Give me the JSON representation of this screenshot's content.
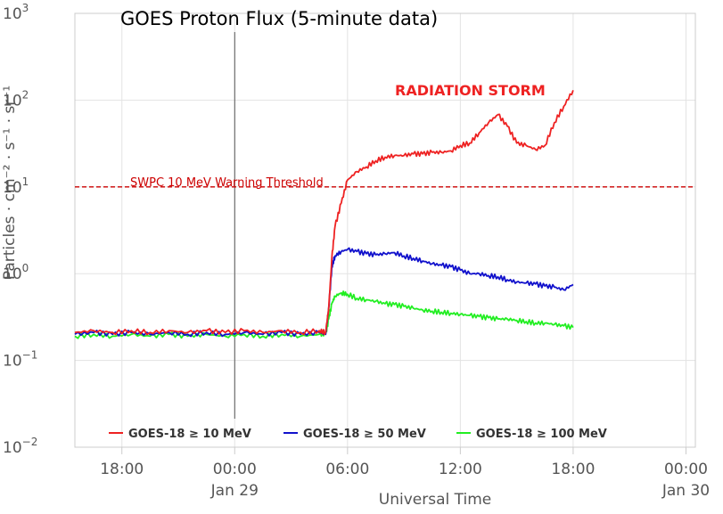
{
  "chart_data": {
    "type": "line",
    "title": "GOES Proton Flux (5-minute data)",
    "xlabel": "Universal Time",
    "ylabel": "Particles · cm⁻² · s⁻¹ · sr⁻¹",
    "y_scale": "log",
    "ylim": [
      0.01,
      1000
    ],
    "xlim": [
      "2025-01-28T15:30Z",
      "2025-01-30T00:30Z"
    ],
    "grid": true,
    "legend_position": "bottom",
    "x_ticks": [
      {
        "x": "2025-01-28T18:00Z",
        "label": "18:00",
        "sublabel": ""
      },
      {
        "x": "2025-01-29T00:00Z",
        "label": "00:00",
        "sublabel": "Jan 29"
      },
      {
        "x": "2025-01-29T06:00Z",
        "label": "06:00",
        "sublabel": ""
      },
      {
        "x": "2025-01-29T12:00Z",
        "label": "12:00",
        "sublabel": ""
      },
      {
        "x": "2025-01-29T18:00Z",
        "label": "18:00",
        "sublabel": ""
      },
      {
        "x": "2025-01-30T00:00Z",
        "label": "00:00",
        "sublabel": "Jan 30"
      }
    ],
    "y_ticks": [
      {
        "value": 0.01,
        "base": "10",
        "exp": "−2"
      },
      {
        "value": 0.1,
        "base": "10",
        "exp": "−1"
      },
      {
        "value": 1,
        "base": "10",
        "exp": "0"
      },
      {
        "value": 10,
        "base": "10",
        "exp": "1"
      },
      {
        "value": 100,
        "base": "10",
        "exp": "2"
      },
      {
        "value": 1000,
        "base": "10",
        "exp": "3"
      }
    ],
    "day_marker": "2025-01-29T00:00Z",
    "threshold": {
      "value": 10,
      "label": "SWPC 10 MeV Warning Threshold",
      "color": "#cc0000"
    },
    "annotation": {
      "text": "RADIATION STORM",
      "color": "#ee2222"
    },
    "series": [
      {
        "name": "GOES-18 ≥ 10 MeV",
        "color": "#ee2222",
        "x": [
          "2025-01-28T15:30Z",
          "2025-01-28T16:30Z",
          "2025-01-28T17:30Z",
          "2025-01-28T18:30Z",
          "2025-01-28T19:30Z",
          "2025-01-28T20:30Z",
          "2025-01-28T21:30Z",
          "2025-01-28T22:30Z",
          "2025-01-28T23:30Z",
          "2025-01-29T00:30Z",
          "2025-01-29T01:30Z",
          "2025-01-29T02:30Z",
          "2025-01-29T03:30Z",
          "2025-01-29T04:30Z",
          "2025-01-29T04:50Z",
          "2025-01-29T05:00Z",
          "2025-01-29T05:10Z",
          "2025-01-29T05:20Z",
          "2025-01-29T05:40Z",
          "2025-01-29T06:00Z",
          "2025-01-29T06:30Z",
          "2025-01-29T07:00Z",
          "2025-01-29T07:30Z",
          "2025-01-29T08:00Z",
          "2025-01-29T08:30Z",
          "2025-01-29T09:00Z",
          "2025-01-29T09:30Z",
          "2025-01-29T10:00Z",
          "2025-01-29T10:30Z",
          "2025-01-29T11:00Z",
          "2025-01-29T11:30Z",
          "2025-01-29T12:00Z",
          "2025-01-29T12:30Z",
          "2025-01-29T13:00Z",
          "2025-01-29T13:30Z",
          "2025-01-29T14:00Z",
          "2025-01-29T14:30Z",
          "2025-01-29T15:00Z",
          "2025-01-29T15:30Z",
          "2025-01-29T16:00Z",
          "2025-01-29T16:30Z",
          "2025-01-29T17:00Z",
          "2025-01-29T17:30Z",
          "2025-01-29T18:00Z"
        ],
        "y": [
          0.21,
          0.22,
          0.21,
          0.22,
          0.21,
          0.22,
          0.21,
          0.22,
          0.21,
          0.22,
          0.21,
          0.22,
          0.21,
          0.22,
          0.21,
          0.4,
          1.5,
          3.5,
          6.5,
          12,
          15,
          17,
          20,
          22,
          23,
          23,
          24,
          24,
          25,
          25,
          26,
          30,
          32,
          42,
          55,
          68,
          50,
          32,
          30,
          27,
          30,
          55,
          85,
          130
        ]
      },
      {
        "name": "GOES-18 ≥ 50 MeV",
        "color": "#1111cc",
        "x": [
          "2025-01-28T15:30Z",
          "2025-01-28T16:30Z",
          "2025-01-28T17:30Z",
          "2025-01-28T18:30Z",
          "2025-01-28T19:30Z",
          "2025-01-28T20:30Z",
          "2025-01-28T21:30Z",
          "2025-01-28T22:30Z",
          "2025-01-28T23:30Z",
          "2025-01-29T00:30Z",
          "2025-01-29T01:30Z",
          "2025-01-29T02:30Z",
          "2025-01-29T03:30Z",
          "2025-01-29T04:30Z",
          "2025-01-29T04:50Z",
          "2025-01-29T05:00Z",
          "2025-01-29T05:10Z",
          "2025-01-29T05:20Z",
          "2025-01-29T05:40Z",
          "2025-01-29T06:00Z",
          "2025-01-29T06:30Z",
          "2025-01-29T07:00Z",
          "2025-01-29T07:30Z",
          "2025-01-29T08:00Z",
          "2025-01-29T08:30Z",
          "2025-01-29T09:00Z",
          "2025-01-29T09:30Z",
          "2025-01-29T10:00Z",
          "2025-01-29T10:30Z",
          "2025-01-29T11:00Z",
          "2025-01-29T11:30Z",
          "2025-01-29T12:00Z",
          "2025-01-29T12:30Z",
          "2025-01-29T13:00Z",
          "2025-01-29T13:30Z",
          "2025-01-29T14:00Z",
          "2025-01-29T14:30Z",
          "2025-01-29T15:00Z",
          "2025-01-29T15:30Z",
          "2025-01-29T16:00Z",
          "2025-01-29T16:30Z",
          "2025-01-29T17:00Z",
          "2025-01-29T17:30Z",
          "2025-01-29T18:00Z"
        ],
        "y": [
          0.2,
          0.21,
          0.2,
          0.21,
          0.2,
          0.21,
          0.2,
          0.21,
          0.2,
          0.21,
          0.2,
          0.21,
          0.2,
          0.21,
          0.2,
          0.4,
          1.2,
          1.6,
          1.8,
          1.9,
          1.8,
          1.7,
          1.65,
          1.7,
          1.75,
          1.6,
          1.5,
          1.4,
          1.3,
          1.25,
          1.2,
          1.1,
          1.0,
          1.0,
          0.95,
          0.92,
          0.85,
          0.8,
          0.78,
          0.76,
          0.72,
          0.7,
          0.65,
          0.75
        ]
      },
      {
        "name": "GOES-18 ≥ 100 MeV",
        "color": "#22ee22",
        "x": [
          "2025-01-28T15:30Z",
          "2025-01-28T16:30Z",
          "2025-01-28T17:30Z",
          "2025-01-28T18:30Z",
          "2025-01-28T19:30Z",
          "2025-01-28T20:30Z",
          "2025-01-28T21:30Z",
          "2025-01-28T22:30Z",
          "2025-01-28T23:30Z",
          "2025-01-29T00:30Z",
          "2025-01-29T01:30Z",
          "2025-01-29T02:30Z",
          "2025-01-29T03:30Z",
          "2025-01-29T04:30Z",
          "2025-01-29T04:50Z",
          "2025-01-29T05:00Z",
          "2025-01-29T05:10Z",
          "2025-01-29T05:20Z",
          "2025-01-29T05:40Z",
          "2025-01-29T06:00Z",
          "2025-01-29T06:30Z",
          "2025-01-29T07:00Z",
          "2025-01-29T07:30Z",
          "2025-01-29T08:00Z",
          "2025-01-29T08:30Z",
          "2025-01-29T09:00Z",
          "2025-01-29T09:30Z",
          "2025-01-29T10:00Z",
          "2025-01-29T10:30Z",
          "2025-01-29T11:00Z",
          "2025-01-29T11:30Z",
          "2025-01-29T12:00Z",
          "2025-01-29T12:30Z",
          "2025-01-29T13:00Z",
          "2025-01-29T13:30Z",
          "2025-01-29T14:00Z",
          "2025-01-29T14:30Z",
          "2025-01-29T15:00Z",
          "2025-01-29T15:30Z",
          "2025-01-29T16:00Z",
          "2025-01-29T16:30Z",
          "2025-01-29T17:00Z",
          "2025-01-29T17:30Z",
          "2025-01-29T18:00Z"
        ],
        "y": [
          0.19,
          0.2,
          0.19,
          0.2,
          0.19,
          0.2,
          0.19,
          0.2,
          0.19,
          0.2,
          0.19,
          0.2,
          0.19,
          0.2,
          0.2,
          0.3,
          0.45,
          0.55,
          0.6,
          0.58,
          0.52,
          0.5,
          0.48,
          0.45,
          0.44,
          0.42,
          0.4,
          0.38,
          0.37,
          0.36,
          0.35,
          0.34,
          0.33,
          0.32,
          0.31,
          0.3,
          0.3,
          0.29,
          0.28,
          0.27,
          0.27,
          0.26,
          0.25,
          0.24
        ]
      }
    ]
  }
}
